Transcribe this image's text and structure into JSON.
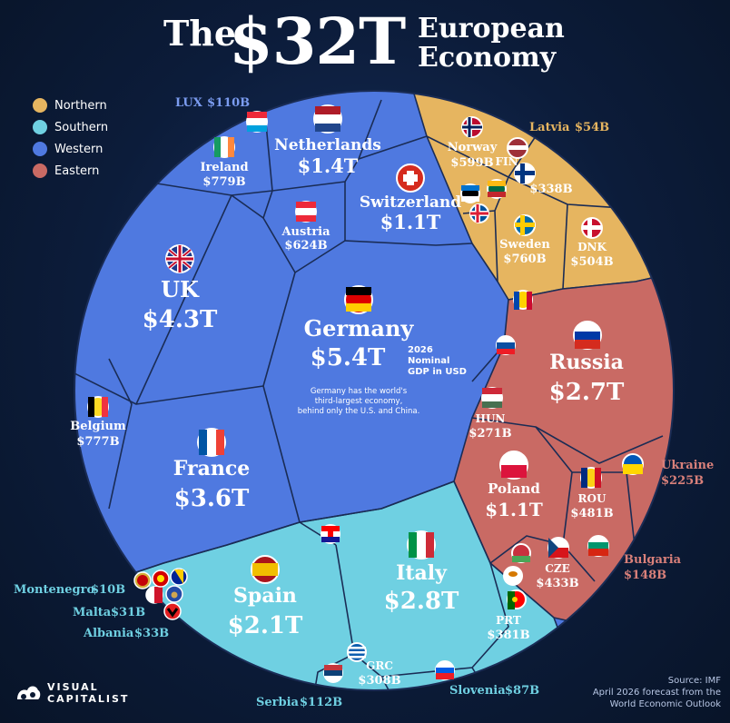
{
  "title": {
    "the": "The",
    "big": "$32T",
    "line1": "European",
    "line2": "Economy"
  },
  "legend": [
    {
      "label": "Northern",
      "color": "#e6b560"
    },
    {
      "label": "Southern",
      "color": "#6fd0e2"
    },
    {
      "label": "Western",
      "color": "#4f79e0"
    },
    {
      "label": "Eastern",
      "color": "#c96a64"
    }
  ],
  "note": {
    "line1": "2026",
    "line2": "Nominal",
    "line3": "GDP in USD"
  },
  "germany_note": {
    "line1": "Germany has the world's",
    "line2": "third-largest economy,",
    "line3": "behind only the U.S. and China."
  },
  "source": {
    "line1": "Source: IMF",
    "line2": "April 2026 forecast from the",
    "line3": "World Economic Outlook"
  },
  "logo": {
    "line1": "VISUAL",
    "line2": "CAPITALIST"
  },
  "chart_data": {
    "type": "voronoi-treemap",
    "title": "The $32T European Economy",
    "unit": "USD",
    "regions": [
      {
        "region": "Western",
        "color": "#4f79e0",
        "countries": [
          {
            "name": "Germany",
            "value": "$5.4T"
          },
          {
            "name": "UK",
            "value": "$4.3T"
          },
          {
            "name": "France",
            "value": "$3.6T"
          },
          {
            "name": "Netherlands",
            "value": "$1.4T"
          },
          {
            "name": "Switzerland",
            "value": "$1.1T"
          },
          {
            "name": "Ireland",
            "value": "$779B"
          },
          {
            "name": "Belgium",
            "value": "$777B"
          },
          {
            "name": "Austria",
            "value": "$624B"
          },
          {
            "name": "LUX",
            "value": "$110B"
          }
        ]
      },
      {
        "region": "Southern",
        "color": "#6fd0e2",
        "countries": [
          {
            "name": "Italy",
            "value": "$2.8T"
          },
          {
            "name": "Spain",
            "value": "$2.1T"
          },
          {
            "name": "PRT",
            "value": "$381B"
          },
          {
            "name": "GRC",
            "value": "$308B"
          },
          {
            "name": "Serbia",
            "value": "$112B"
          },
          {
            "name": "Slovenia",
            "value": "$87B"
          },
          {
            "name": "Albania",
            "value": "$33B"
          },
          {
            "name": "Malta",
            "value": "$31B"
          },
          {
            "name": "Montenegro",
            "value": "$10B"
          }
        ]
      },
      {
        "region": "Eastern",
        "color": "#c96a64",
        "countries": [
          {
            "name": "Russia",
            "value": "$2.7T"
          },
          {
            "name": "Poland",
            "value": "$1.1T"
          },
          {
            "name": "ROU",
            "value": "$481B"
          },
          {
            "name": "CZE",
            "value": "$433B"
          },
          {
            "name": "HUN",
            "value": "$271B"
          },
          {
            "name": "Ukraine",
            "value": "$225B"
          },
          {
            "name": "Bulgaria",
            "value": "$148B"
          }
        ]
      },
      {
        "region": "Northern",
        "color": "#e6b560",
        "countries": [
          {
            "name": "Sweden",
            "value": "$760B"
          },
          {
            "name": "Norway",
            "value": "$599B"
          },
          {
            "name": "DNK",
            "value": "$504B"
          },
          {
            "name": "FIN",
            "value": "$338B"
          },
          {
            "name": "Latvia",
            "value": "$54B"
          }
        ]
      }
    ]
  }
}
